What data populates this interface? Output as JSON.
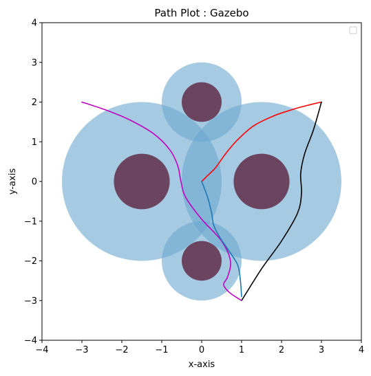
{
  "chart_data": {
    "type": "line",
    "title": "Path Plot : Gazebo",
    "xlabel": "x-axis",
    "ylabel": "y-axis",
    "xlim": [
      -4,
      4
    ],
    "ylim": [
      -4,
      4
    ],
    "xticks": [
      -4,
      -3,
      -2,
      -1,
      0,
      1,
      2,
      3,
      4
    ],
    "yticks": [
      -4,
      -3,
      -2,
      -1,
      0,
      1,
      2,
      3,
      4
    ],
    "xtick_labels": [
      "−4",
      "−3",
      "−2",
      "−1",
      "0",
      "1",
      "2",
      "3",
      "4"
    ],
    "ytick_labels": [
      "−4",
      "−3",
      "−2",
      "−1",
      "0",
      "1",
      "2",
      "3",
      "4"
    ],
    "grid": false,
    "legend": {
      "placement": "top-right",
      "entries": []
    },
    "regions": [
      {
        "cx": -1.5,
        "cy": 0,
        "r": 2.0
      },
      {
        "cx": 1.5,
        "cy": 0,
        "r": 2.0
      },
      {
        "cx": 0,
        "cy": 2,
        "r": 1.0
      },
      {
        "cx": 0,
        "cy": -2,
        "r": 1.0
      }
    ],
    "obstacles": [
      {
        "cx": -1.5,
        "cy": 0,
        "r": 0.7
      },
      {
        "cx": 1.5,
        "cy": 0,
        "r": 0.7
      },
      {
        "cx": 0,
        "cy": 2,
        "r": 0.5
      },
      {
        "cx": 0,
        "cy": -2,
        "r": 0.5
      }
    ],
    "colors": {
      "region": "#a6c8e0",
      "region_overlap": "#6aa7cf",
      "obstacle": "#6b4560"
    },
    "series": [
      {
        "color": "#ff0000",
        "x": [
          0,
          0.15,
          0.35,
          0.6,
          0.9,
          1.3,
          1.8,
          2.3,
          2.7,
          3.0
        ],
        "y": [
          0,
          0.15,
          0.35,
          0.7,
          1.05,
          1.4,
          1.65,
          1.82,
          1.93,
          2.0
        ]
      },
      {
        "color": "#000000",
        "x": [
          3.0,
          2.8,
          2.58,
          2.48,
          2.5,
          2.4,
          2.0,
          1.5,
          1.0
        ],
        "y": [
          2.0,
          1.3,
          0.7,
          0.2,
          -0.3,
          -0.8,
          -1.5,
          -2.2,
          -3.0
        ]
      },
      {
        "color": "#c000c0",
        "x": [
          -3.0,
          -2.4,
          -1.8,
          -1.2,
          -0.8,
          -0.6,
          -0.52,
          -0.4,
          0.0,
          0.5,
          0.72,
          0.65,
          0.55,
          0.7,
          1.0
        ],
        "y": [
          2.0,
          1.8,
          1.55,
          1.2,
          0.8,
          0.4,
          0.0,
          -0.4,
          -0.95,
          -1.5,
          -2.0,
          -2.4,
          -2.6,
          -2.8,
          -3.0
        ]
      },
      {
        "color": "#1f77b4",
        "x": [
          0,
          0.15,
          0.25,
          0.3,
          0.45,
          0.65,
          0.9,
          0.97,
          1.0
        ],
        "y": [
          0,
          -0.4,
          -0.8,
          -1.1,
          -1.4,
          -1.7,
          -2.1,
          -2.5,
          -2.9
        ]
      }
    ]
  }
}
